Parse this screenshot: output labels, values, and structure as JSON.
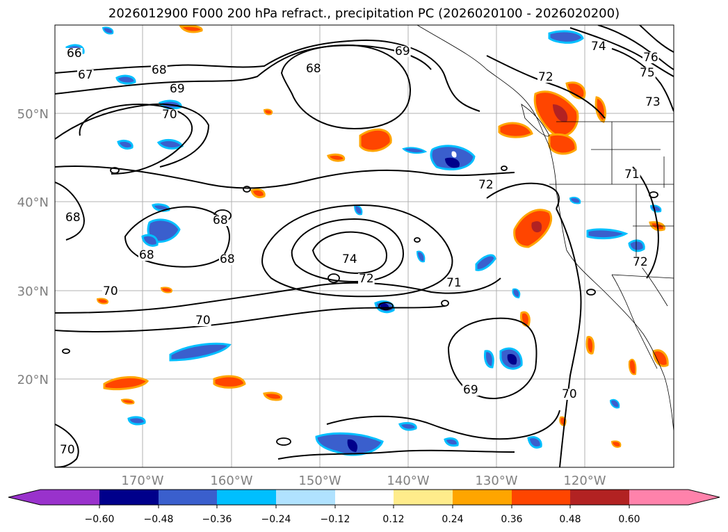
{
  "title": "2026012900 F000 200 hPa refract., precipitation PC (2026020100 - 2026020200)",
  "map": {
    "lat_labels": [
      "50°N",
      "40°N",
      "30°N",
      "20°N"
    ],
    "lon_labels": [
      "170°W",
      "160°W",
      "150°W",
      "140°W",
      "130°W",
      "120°W"
    ],
    "contour_labels": [
      "66",
      "67",
      "68",
      "69",
      "70",
      "69",
      "68",
      "74",
      "75",
      "76",
      "73",
      "72",
      "71",
      "68",
      "68",
      "68",
      "68",
      "70",
      "70",
      "74",
      "72",
      "72",
      "71",
      "69",
      "70",
      "72",
      "70"
    ]
  },
  "colorbar": {
    "tick_labels": [
      "−0.60",
      "−0.48",
      "−0.36",
      "−0.24",
      "−0.12",
      "0.12",
      "0.24",
      "0.36",
      "0.48",
      "0.60"
    ],
    "colors": [
      "#9932cc",
      "#00008b",
      "#3a5fcd",
      "#00bfff",
      "#b0e2ff",
      "#ffffff",
      "#ffec8b",
      "#ffa500",
      "#ff4500",
      "#b22222",
      "#ff82ab"
    ]
  },
  "colors": {
    "land_border": "#000000",
    "grid": "#b0b0b0",
    "axis_label": "#808080"
  }
}
